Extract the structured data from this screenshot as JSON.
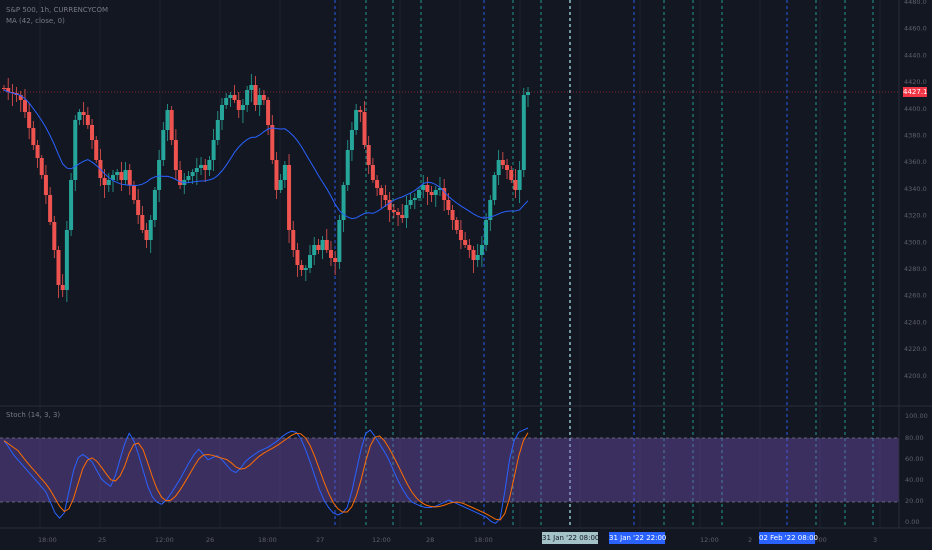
{
  "legend": {
    "symbol": "S&P 500, 1h, CURRENCYCOM",
    "ma": "MA (42, close, 0)",
    "stoch": "Stoch (14, 3, 3)"
  },
  "price_axis": {
    "labels": [
      "4480.0",
      "4460.0",
      "4440.0",
      "4420.0",
      "4400.0",
      "4380.0",
      "4360.0",
      "4340.0",
      "4320.0",
      "4300.0",
      "4280.0",
      "4260.0",
      "4240.0",
      "4220.0",
      "4200.0"
    ],
    "current_price": "4427.1"
  },
  "oscillator_axis": {
    "labels": [
      "100.00",
      "80.00",
      "60.00",
      "40.00",
      "20.00",
      "0.00"
    ]
  },
  "time_axis": {
    "labels": [
      "18:00",
      "25",
      "12:00",
      "26",
      "18:00",
      "27",
      "12:00",
      "28",
      "18:00",
      "12:00",
      "2",
      "12:00",
      "3"
    ],
    "badges": [
      "31 Jan '22   08:00",
      "31 Jan '22   22:00",
      "02 Feb '22   08:00"
    ]
  },
  "colors": {
    "background": "#131722",
    "bull": "#26a69a",
    "bear": "#ef5350",
    "ma_line": "#2962ff",
    "stoch_k": "#2962ff",
    "stoch_d": "#ff6d00",
    "band_fill": "#7e57c2",
    "price_line": "#f23645",
    "vline_blue": "#2962ff",
    "vline_teal": "#26a69a",
    "vline_light": "#b2ebf2"
  }
}
